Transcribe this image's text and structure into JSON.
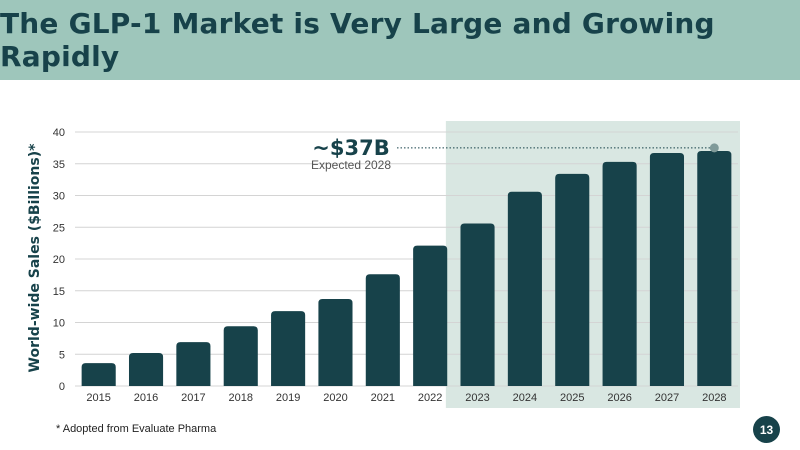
{
  "slide": {
    "title": "The GLP-1 Market is Very Large and Growing Rapidly",
    "footnote": "* Adopted from Evaluate Pharma",
    "page_number": "13"
  },
  "colors": {
    "title_band": "#9ec6bb",
    "bar": "#17424a",
    "forecast_shade": "#d9e7e2",
    "marker": "#7f9a99"
  },
  "chart_data": {
    "type": "bar",
    "title": "",
    "xlabel": "",
    "ylabel": "World-wide Sales ($Billions)*",
    "ylim": [
      0,
      40
    ],
    "yticks": [
      0,
      5,
      10,
      15,
      20,
      25,
      30,
      35,
      40
    ],
    "grid": true,
    "categories": [
      "2015",
      "2016",
      "2017",
      "2018",
      "2019",
      "2020",
      "2021",
      "2022",
      "2023",
      "2024",
      "2025",
      "2026",
      "2027",
      "2028"
    ],
    "values": [
      3.6,
      5.2,
      6.9,
      9.4,
      11.8,
      13.7,
      17.6,
      22.1,
      25.6,
      30.6,
      33.4,
      35.3,
      36.7,
      37
    ],
    "forecast_from": "2023",
    "annotation": {
      "value_label": "~$37B",
      "sub_label": "Expected 2028",
      "category": "2028",
      "value": 37.5
    }
  }
}
